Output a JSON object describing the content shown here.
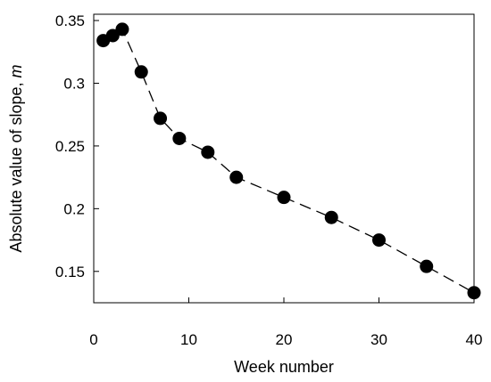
{
  "chart_data": {
    "type": "scatter",
    "title": "",
    "xlabel": "Week number",
    "ylabel_main": "Absolute value of slope, ",
    "ylabel_var": "m",
    "xlim": [
      0,
      40
    ],
    "ylim": [
      0.125,
      0.355
    ],
    "xticks": [
      0,
      10,
      20,
      30,
      40
    ],
    "yticks": [
      0.15,
      0.2,
      0.25,
      0.3,
      0.35
    ],
    "ytick_labels": [
      "0.15",
      "0.2",
      "0.25",
      "0.3",
      "0.35"
    ],
    "grid": false,
    "line_style": "dashed",
    "marker": "filled-circle",
    "marker_color": "#000000",
    "series": [
      {
        "x": [
          1,
          2,
          3,
          5,
          7,
          9,
          12,
          15,
          20,
          25,
          30,
          35,
          40
        ],
        "y": [
          0.334,
          0.338,
          0.343,
          0.309,
          0.272,
          0.256,
          0.245,
          0.225,
          0.209,
          0.193,
          0.175,
          0.154,
          0.133
        ]
      }
    ]
  }
}
